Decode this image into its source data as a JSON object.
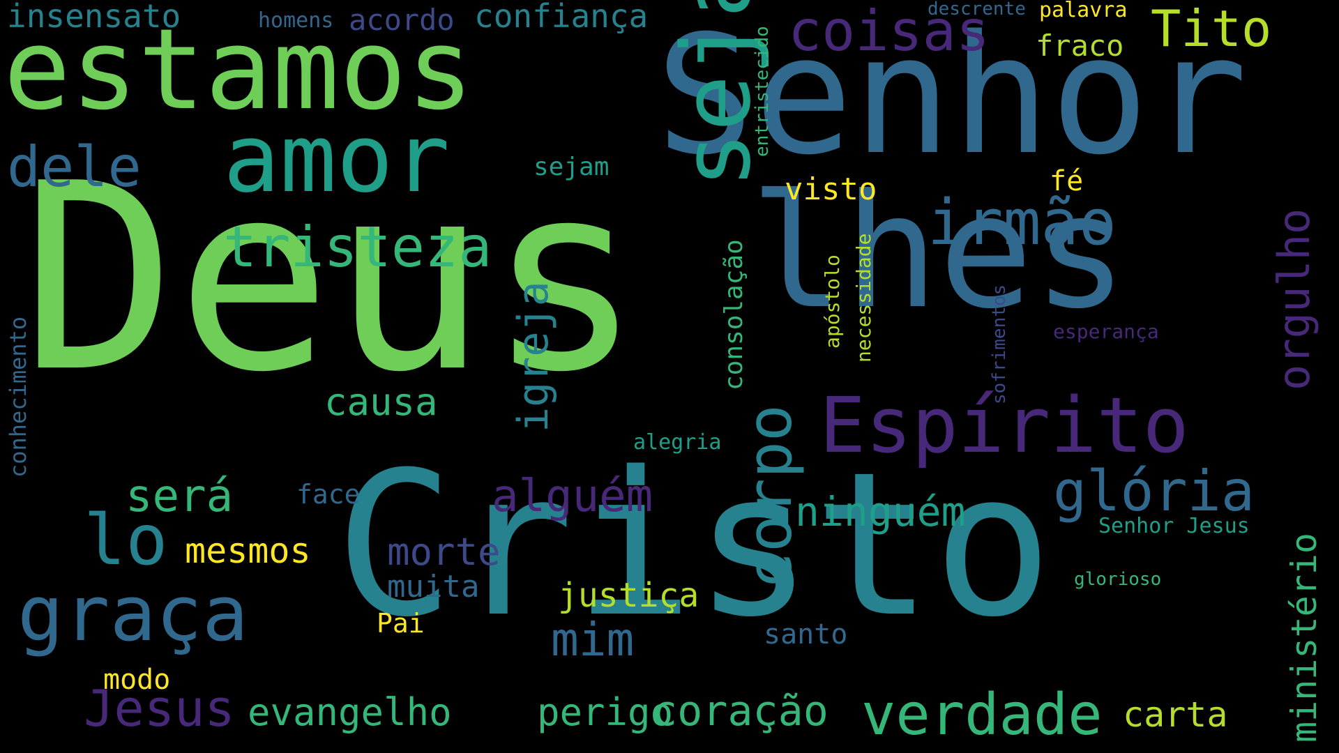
{
  "palette": {
    "background": "#000000",
    "yellow": "#fde725",
    "lime": "#b5de2b",
    "lightgreen": "#6ece58",
    "green": "#35b779",
    "teal": "#1f9e89",
    "blueteal": "#26828e",
    "blue": "#31688e",
    "indigo": "#3e4989",
    "purple": "#482878",
    "darkpurple": "#440154"
  },
  "words": [
    "Deus",
    "Cristo",
    "Senhor",
    "lhes",
    "estamos",
    "amor",
    "seja",
    "Espírito",
    "glória",
    "irmão",
    "graça",
    "Jesus",
    "verdade",
    "corpo",
    "coração",
    "evangelho",
    "perigo",
    "tristeza",
    "dele",
    "lo",
    "coisas",
    "Tito",
    "igreja",
    "ministério",
    "orgulho",
    "alguém",
    "será",
    "ninguém",
    "mim",
    "morte",
    "mesmos",
    "confiança",
    "insensato",
    "acordo",
    "homens",
    "fraco",
    "palavra",
    "descrente",
    "justiça",
    "carta",
    "muita",
    "causa",
    "consolação",
    "visto",
    "fé",
    "Pai",
    "santo",
    "modo",
    "conhecimento",
    "Senhor Jesus",
    "face",
    "alegria",
    "sejam",
    "necessidade",
    "apóstolo",
    "entristecido",
    "sofrimentos",
    "esperança",
    "glorioso",
    "evangelho"
  ]
}
